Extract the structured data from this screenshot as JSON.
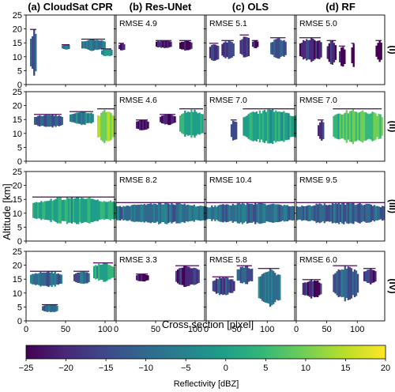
{
  "chart_data": {
    "type": "heatmap",
    "columns": [
      {
        "id": "a",
        "title": "(a) CloudSat CPR",
        "xlim": [
          0,
          112
        ]
      },
      {
        "id": "b",
        "title": "(b) Res-UNet",
        "xlim": [
          0,
          112
        ]
      },
      {
        "id": "c",
        "title": "(c) OLS",
        "xlim": [
          0,
          145
        ]
      },
      {
        "id": "d",
        "title": "(d) RF",
        "xlim": [
          0,
          145
        ]
      }
    ],
    "rows": [
      {
        "id": "I",
        "label": "(I)"
      },
      {
        "id": "II",
        "label": "(II)"
      },
      {
        "id": "III",
        "label": "(III)"
      },
      {
        "id": "IV",
        "label": "(IV)"
      }
    ],
    "rmse": [
      [
        "",
        "RMSE 4.9",
        "RMSE 5.1",
        "RMSE 5.0"
      ],
      [
        "",
        "RMSE 4.6",
        "RMSE 7.0",
        "RMSE 7.0"
      ],
      [
        "",
        "RMSE 8.2",
        "RMSE 10.4",
        "RMSE 9.5"
      ],
      [
        "",
        "RMSE 3.3",
        "RMSE 5.8",
        "RMSE 6.0"
      ]
    ],
    "ylim": [
      0,
      25
    ],
    "ytick_labels": [
      "0",
      "5",
      "10",
      "15",
      "20",
      "25"
    ],
    "xticks_a_b": [
      "0",
      "50",
      "100"
    ],
    "xticks_c_d": [
      "0",
      "50",
      "100"
    ],
    "ylabel": "Altitude [km]",
    "xlabel": "Cross section [pixel]",
    "colorbar": {
      "label": "Reflectivity [dBZ]",
      "range": [
        -25,
        20
      ],
      "tick_labels": [
        "−25",
        "−20",
        "−15",
        "−10",
        "−5",
        "0",
        "5",
        "10",
        "15",
        "20"
      ],
      "colormap": "viridis"
    },
    "cloud_blobs": [
      [
        [
          [
            5,
            13,
            3,
            20,
            0.3
          ],
          [
            45,
            55,
            12.5,
            14.5,
            0.4
          ],
          [
            70,
            100,
            12,
            16.5,
            0.35
          ],
          [
            95,
            108,
            10,
            13,
            0.5
          ]
        ],
        [
          [
            3,
            10,
            12,
            15,
            0.05
          ],
          [
            50,
            70,
            13,
            16,
            0.05
          ],
          [
            80,
            95,
            12,
            16,
            0.05
          ]
        ],
        [
          [
            5,
            20,
            8,
            15,
            0.15
          ],
          [
            25,
            45,
            9,
            16,
            0.15
          ],
          [
            55,
            70,
            9,
            18,
            0.2
          ],
          [
            75,
            85,
            13,
            16,
            0.1
          ],
          [
            105,
            130,
            9,
            17,
            0.25
          ]
        ],
        [
          [
            5,
            40,
            8,
            17,
            0.1
          ],
          [
            50,
            65,
            7,
            16,
            0.1
          ],
          [
            70,
            80,
            6,
            14,
            0.05
          ],
          [
            90,
            95,
            6,
            15,
            0.05
          ],
          [
            130,
            140,
            8,
            16,
            0.05
          ]
        ]
      ],
      [
        [
          [
            10,
            45,
            12,
            17,
            0.3
          ],
          [
            55,
            85,
            13,
            18,
            0.4
          ],
          [
            90,
            112,
            6,
            19,
            0.85
          ]
        ],
        [
          [
            25,
            40,
            11,
            15,
            0.05
          ],
          [
            55,
            75,
            13,
            17,
            0.05
          ],
          [
            80,
            110,
            8,
            19,
            0.6
          ]
        ],
        [
          [
            40,
            50,
            7,
            15,
            0.2
          ],
          [
            60,
            145,
            6,
            19,
            0.6
          ]
        ],
        [
          [
            35,
            45,
            7,
            15,
            0.1
          ],
          [
            60,
            140,
            6,
            19,
            0.7
          ]
        ]
      ],
      [
        [
          [
            8,
            112,
            6,
            16,
            0.6
          ]
        ],
        [
          [
            0,
            112,
            6,
            14,
            0.35
          ]
        ],
        [
          [
            0,
            145,
            6,
            14,
            0.35
          ]
        ],
        [
          [
            0,
            145,
            6,
            14,
            0.3
          ]
        ]
      ],
      [
        [
          [
            5,
            45,
            12,
            18,
            0.35
          ],
          [
            20,
            40,
            3,
            6,
            0.3
          ],
          [
            60,
            80,
            13,
            18,
            0.3
          ],
          [
            85,
            110,
            14,
            21,
            0.6
          ]
        ],
        [
          [
            25,
            40,
            14,
            17,
            0.05
          ],
          [
            75,
            105,
            12,
            20,
            0.15
          ]
        ],
        [
          [
            10,
            45,
            9,
            16,
            0.2
          ],
          [
            50,
            75,
            13,
            20,
            0.3
          ],
          [
            85,
            120,
            5,
            19,
            0.4
          ]
        ],
        [
          [
            10,
            40,
            8,
            15,
            0.1
          ],
          [
            60,
            100,
            7,
            20,
            0.3
          ],
          [
            110,
            130,
            13,
            19,
            0.15
          ]
        ]
      ]
    ]
  }
}
